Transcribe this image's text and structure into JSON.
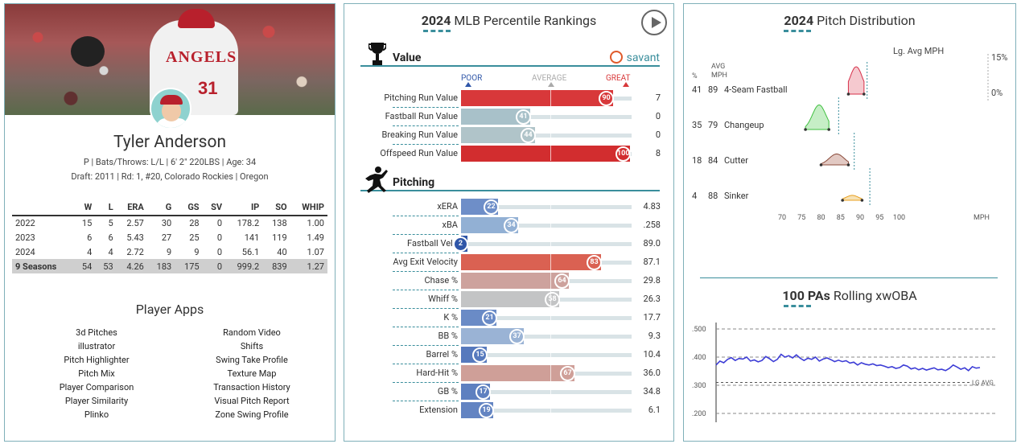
{
  "player": {
    "name": "Tyler Anderson",
    "bio_line1": "P | Bats/Throws: L/L | 6' 2\" 220LBS | Age: 34",
    "bio_line2": "Draft: 2011 | Rd: 1, #20, Colorado Rockies | Oregon",
    "jersey_text": "ANGELS",
    "jersey_number": "31"
  },
  "stats": {
    "headers": [
      "",
      "W",
      "L",
      "ERA",
      "G",
      "GS",
      "SV",
      "IP",
      "SO",
      "WHIP"
    ],
    "rows": [
      [
        "2022",
        "15",
        "5",
        "2.57",
        "30",
        "28",
        "0",
        "178.2",
        "138",
        "1.00"
      ],
      [
        "2023",
        "6",
        "6",
        "5.43",
        "27",
        "25",
        "0",
        "141",
        "119",
        "1.49"
      ],
      [
        "2024",
        "4",
        "4",
        "2.72",
        "9",
        "9",
        "0",
        "56.1",
        "40",
        "1.07"
      ]
    ],
    "career": [
      "9 Seasons",
      "54",
      "53",
      "4.26",
      "183",
      "175",
      "0",
      "999.2",
      "839",
      "1.27"
    ]
  },
  "apps": {
    "title": "Player Apps",
    "left": [
      "3d Pitches",
      "illustrator",
      "Pitch Highlighter",
      "Pitch Mix",
      "Player Comparison",
      "Player Similarity",
      "Plinko"
    ],
    "right": [
      "Random Video",
      "Shifts",
      "Swing Take Profile",
      "Texture Map",
      "Transaction History",
      "Visual Pitch Report",
      "Zone Swing Profile"
    ]
  },
  "percentile": {
    "year": "2024",
    "title": "MLB Percentile Rankings",
    "value_section": "Value",
    "pitching_section": "Pitching",
    "savant": "savant",
    "scale": {
      "poor": "POOR",
      "average": "AVERAGE",
      "great": "GREAT"
    },
    "value_rows": [
      {
        "label": "Pitching Run Value",
        "pct": 90,
        "value": "7",
        "color": "#d8383a"
      },
      {
        "label": "Fastball Run Value",
        "pct": 41,
        "value": "0",
        "color": "#a8c1c9"
      },
      {
        "label": "Breaking Run Value",
        "pct": 44,
        "value": "0",
        "color": "#b0c4c9"
      },
      {
        "label": "Offspeed Run Value",
        "pct": 100,
        "value": "8",
        "color": "#d22d2f"
      }
    ],
    "pitching_rows": [
      {
        "label": "xERA",
        "pct": 22,
        "value": "4.83",
        "color": "#6e8ec8"
      },
      {
        "label": "xBA",
        "pct": 34,
        "value": ".258",
        "color": "#92b0d4"
      },
      {
        "label": "Fastball Velo",
        "pct": 2,
        "value": "89.0",
        "color": "#2f56a8"
      },
      {
        "label": "Avg Exit Velocity",
        "pct": 83,
        "value": "87.1",
        "color": "#da6152"
      },
      {
        "label": "Chase %",
        "pct": 64,
        "value": "29.8",
        "color": "#cda29d"
      },
      {
        "label": "Whiff %",
        "pct": 58,
        "value": "26.3",
        "color": "#c3c4c5"
      },
      {
        "label": "K %",
        "pct": 21,
        "value": "17.7",
        "color": "#6a8bc6"
      },
      {
        "label": "BB %",
        "pct": 37,
        "value": "9.3",
        "color": "#9ab3d5"
      },
      {
        "label": "Barrel %",
        "pct": 15,
        "value": "10.4",
        "color": "#5679bd"
      },
      {
        "label": "Hard-Hit %",
        "pct": 67,
        "value": "36.0",
        "color": "#cf9f98"
      },
      {
        "label": "GB %",
        "pct": 17,
        "value": "34.8",
        "color": "#5e80c0"
      },
      {
        "label": "Extension",
        "pct": 19,
        "value": "6.1",
        "color": "#6384c2"
      }
    ]
  },
  "pitch_dist": {
    "year": "2024",
    "title": "Pitch Distribution",
    "col_pct": "%",
    "col_avg": "AVG",
    "col_mph": "MPH",
    "lg_label": "Lg. Avg MPH",
    "pct_top": "15%",
    "pct_bottom": "0%",
    "axis_unit": "MPH",
    "xticks": [
      70,
      75,
      80,
      85,
      90,
      95,
      100
    ],
    "pitches": [
      {
        "pct": "41",
        "mph": "89",
        "name": "4-Seam Fastball",
        "color": "#d6304a",
        "fill": "#f5c9cf",
        "center": 89,
        "spread": 1.6,
        "lo": 87,
        "hi": 91,
        "height": 1.0,
        "lg": 91.8
      },
      {
        "pct": "35",
        "mph": "79",
        "name": "Changeup",
        "color": "#3fbf3f",
        "fill": "#c6eec6",
        "center": 79.5,
        "spread": 1.7,
        "lo": 76,
        "hi": 82,
        "height": 0.9,
        "lg": 84.5
      },
      {
        "pct": "18",
        "mph": "84",
        "name": "Cutter",
        "color": "#8a4a3a",
        "fill": "#e2c9c3",
        "center": 84,
        "spread": 1.9,
        "lo": 80,
        "hi": 87,
        "height": 0.4,
        "lg": 88.5
      },
      {
        "pct": "4",
        "mph": "88",
        "name": "Sinker",
        "color": "#e8a020",
        "fill": "#f7e2b5",
        "center": 88,
        "spread": 1.6,
        "lo": 85.5,
        "hi": 90.5,
        "height": 0.18,
        "lg": 92.5
      }
    ]
  },
  "rolling": {
    "pas": "100 PAs",
    "title": "Rolling xwOBA",
    "yticks": [
      ".500",
      ".400",
      ".300",
      ".200"
    ],
    "lg_avg_label": "LG AVG",
    "lg_avg_value": 0.31,
    "line_color": "#3d3dd6",
    "values": [
      0.372,
      0.386,
      0.38,
      0.392,
      0.398,
      0.388,
      0.395,
      0.393,
      0.4,
      0.386,
      0.39,
      0.383,
      0.388,
      0.402,
      0.394,
      0.384,
      0.392,
      0.41,
      0.4,
      0.405,
      0.397,
      0.408,
      0.396,
      0.388,
      0.396,
      0.392,
      0.4,
      0.386,
      0.393,
      0.397,
      0.391,
      0.384,
      0.389,
      0.384,
      0.387,
      0.379,
      0.382,
      0.372,
      0.38,
      0.375,
      0.372,
      0.376,
      0.37,
      0.372,
      0.368,
      0.363,
      0.366,
      0.36,
      0.363,
      0.372,
      0.368,
      0.358,
      0.362,
      0.355,
      0.36,
      0.354,
      0.358,
      0.362,
      0.355,
      0.357,
      0.352,
      0.36,
      0.372,
      0.365,
      0.357,
      0.362,
      0.352,
      0.366,
      0.361,
      0.363
    ]
  }
}
